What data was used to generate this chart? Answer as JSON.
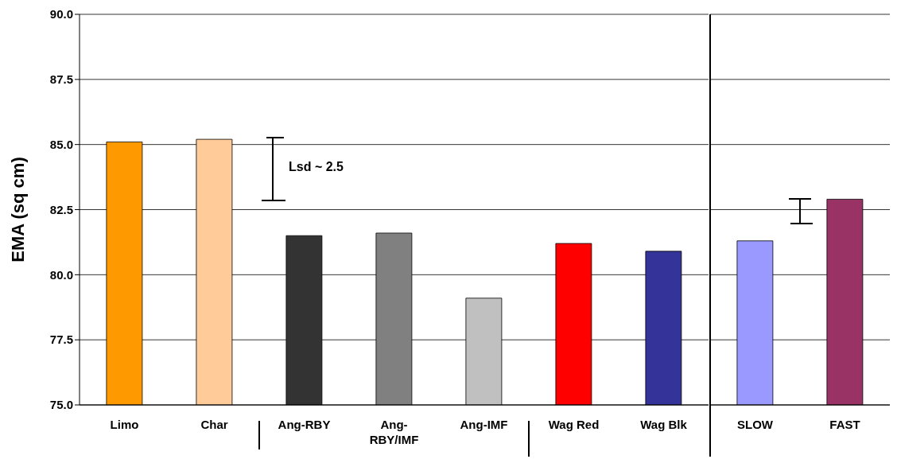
{
  "chart_data": [
    {
      "type": "bar",
      "ylabel": "EMA (sq cm)",
      "categories": [
        "Limo",
        "Char",
        "Ang-RBY",
        "Ang-RBY/IMF",
        "Ang-IMF",
        "Wag Red",
        "Wag Blk"
      ],
      "values": [
        85.1,
        85.2,
        81.5,
        81.6,
        79.1,
        81.2,
        80.9
      ],
      "colors": [
        "#ff9900",
        "#ffcc99",
        "#333333",
        "#808080",
        "#c0c0c0",
        "#ff0000",
        "#333399"
      ],
      "ylim": [
        75,
        90
      ],
      "yticks": [
        {
          "value": 75,
          "label": "75.0"
        },
        {
          "value": 77.5,
          "label": "77.5"
        },
        {
          "value": 80,
          "label": "80.0"
        },
        {
          "value": 82.5,
          "label": "82.5"
        },
        {
          "value": 85,
          "label": "85.0"
        },
        {
          "value": 87.5,
          "label": "87.5"
        },
        {
          "value": 90,
          "label": "90.0"
        }
      ],
      "grid": "y",
      "annotations": [
        "Lsd ~ 2.5"
      ]
    },
    {
      "type": "bar",
      "categories": [
        "SLOW",
        "FAST"
      ],
      "values": [
        81.3,
        82.9
      ],
      "colors": [
        "#9999ff",
        "#993366"
      ],
      "ylim": [
        75,
        90
      ],
      "yticks": [
        75,
        77.5,
        80,
        82.5,
        85,
        87.5,
        90
      ],
      "grid": "y",
      "tick_labels": "x"
    }
  ]
}
